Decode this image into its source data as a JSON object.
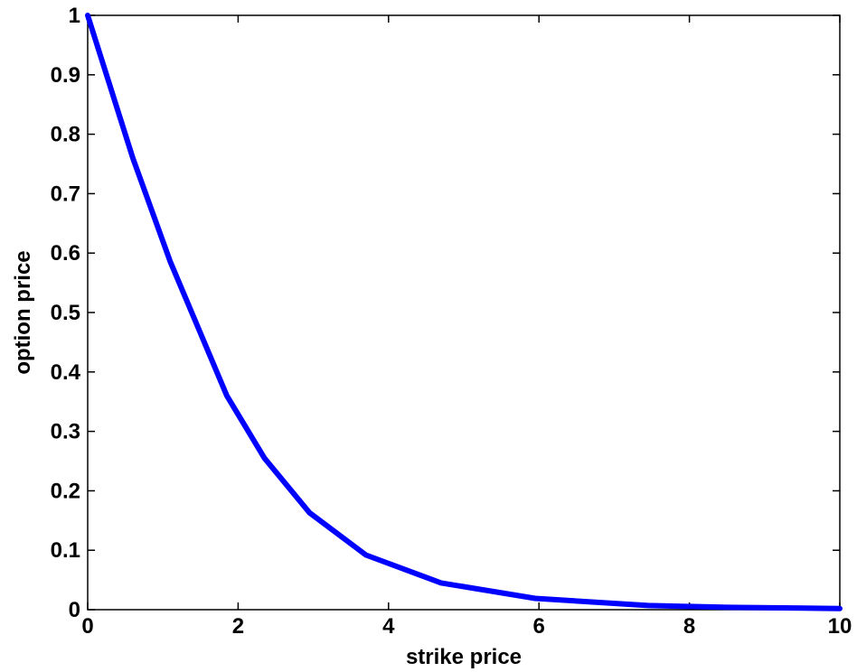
{
  "chart_data": {
    "type": "line",
    "title": "",
    "xlabel": "strike price",
    "ylabel": "option price",
    "xlim": [
      0,
      10
    ],
    "ylim": [
      0,
      1
    ],
    "x_ticks": [
      0,
      2,
      4,
      6,
      8,
      10
    ],
    "x_tick_labels": [
      "0",
      "2",
      "4",
      "6",
      "8",
      "10"
    ],
    "y_ticks": [
      0,
      0.1,
      0.2,
      0.3,
      0.4,
      0.5,
      0.6,
      0.7,
      0.8,
      0.9,
      1
    ],
    "y_tick_labels": [
      "0",
      "0.1",
      "0.2",
      "0.3",
      "0.4",
      "0.5",
      "0.6",
      "0.7",
      "0.8",
      "0.9",
      "1"
    ],
    "grid": false,
    "series": [
      {
        "color": "#0000ff",
        "x": [
          0,
          0.6,
          1.1,
          1.5,
          1.85,
          2.35,
          2.95,
          3.7,
          4.7,
          5.95,
          7.45,
          8.5,
          10
        ],
        "y": [
          1.0,
          0.76,
          0.585,
          0.465,
          0.36,
          0.255,
          0.163,
          0.092,
          0.045,
          0.019,
          0.007,
          0.004,
          0.002
        ]
      }
    ]
  }
}
